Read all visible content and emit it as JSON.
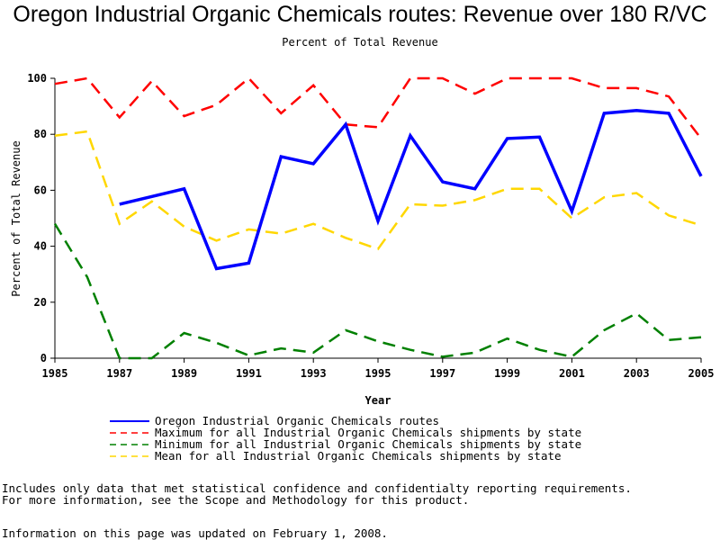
{
  "title": "Oregon Industrial Organic Chemicals routes: Revenue over 180 R/VC",
  "subtitle": "Percent of Total Revenue",
  "footnotes": {
    "line1": "Includes only data that met statistical confidence and confidentialty reporting requirements.",
    "line2": "For more information, see the Scope and Methodology for this product.",
    "updated": "Information on this page was updated on February 1, 2008."
  },
  "chart_data": {
    "type": "line",
    "title": "Oregon Industrial Organic Chemicals routes: Revenue over 180 R/VC",
    "subtitle": "Percent of Total Revenue",
    "xlabel": "Year",
    "ylabel": "Percent of Total Revenue",
    "xlim": [
      1985,
      2005
    ],
    "ylim": [
      0,
      100
    ],
    "xticks": [
      "1985",
      "1987",
      "1989",
      "1991",
      "1993",
      "1995",
      "1997",
      "1999",
      "2001",
      "2003",
      "2005"
    ],
    "yticks": [
      "0",
      "20",
      "40",
      "60",
      "80",
      "100"
    ],
    "grid": false,
    "legend_position": "bottom",
    "series": [
      {
        "name": "Oregon Industrial Organic Chemicals routes",
        "color": "#0000ff",
        "style": "solid",
        "points": [
          [
            1987,
            55
          ],
          [
            1989,
            60.5
          ],
          [
            1990,
            32
          ],
          [
            1991,
            34
          ],
          [
            1992,
            72
          ],
          [
            1993,
            69.5
          ],
          [
            1994,
            83.5
          ],
          [
            1995,
            49
          ],
          [
            1996,
            79.5
          ],
          [
            1997,
            63
          ],
          [
            1998,
            60.5
          ],
          [
            1999,
            78.5
          ],
          [
            2000,
            79
          ],
          [
            2001,
            52.5
          ],
          [
            2002,
            87.5
          ],
          [
            2003,
            88.5
          ],
          [
            2004,
            87.5
          ],
          [
            2005,
            65
          ]
        ]
      },
      {
        "name": "Maximum for all Industrial Organic Chemicals shipments by state",
        "color": "#ff0000",
        "style": "dashed",
        "points": [
          [
            1985,
            98
          ],
          [
            1986,
            100
          ],
          [
            1987,
            86
          ],
          [
            1988,
            99
          ],
          [
            1989,
            86.5
          ],
          [
            1990,
            90.5
          ],
          [
            1991,
            100
          ],
          [
            1992,
            87.5
          ],
          [
            1993,
            97.5
          ],
          [
            1994,
            83.5
          ],
          [
            1995,
            82.5
          ],
          [
            1996,
            100
          ],
          [
            1997,
            100
          ],
          [
            1998,
            94.5
          ],
          [
            1999,
            100
          ],
          [
            2000,
            100
          ],
          [
            2001,
            100
          ],
          [
            2002,
            96.5
          ],
          [
            2003,
            96.5
          ],
          [
            2004,
            93.5
          ],
          [
            2005,
            78.5
          ]
        ]
      },
      {
        "name": "Minimum for all Industrial Organic Chemicals shipments by state",
        "color": "#008000",
        "style": "dashed",
        "points": [
          [
            1985,
            48
          ],
          [
            1986,
            29
          ],
          [
            1987,
            0
          ],
          [
            1988,
            0
          ],
          [
            1989,
            9
          ],
          [
            1990,
            5.5
          ],
          [
            1991,
            1
          ],
          [
            1992,
            3.5
          ],
          [
            1993,
            2
          ],
          [
            1994,
            10
          ],
          [
            1995,
            6
          ],
          [
            1996,
            3
          ],
          [
            1997,
            0.5
          ],
          [
            1998,
            2
          ],
          [
            1999,
            7
          ],
          [
            2000,
            3
          ],
          [
            2001,
            0.5
          ],
          [
            2002,
            10
          ],
          [
            2003,
            16
          ],
          [
            2004,
            6.5
          ],
          [
            2005,
            7.5
          ]
        ]
      },
      {
        "name": "Mean for all Industrial Organic Chemicals shipments by state",
        "color": "#ffd700",
        "style": "dashed",
        "points": [
          [
            1985,
            79.5
          ],
          [
            1986,
            81
          ],
          [
            1987,
            48
          ],
          [
            1988,
            56
          ],
          [
            1989,
            47
          ],
          [
            1990,
            42
          ],
          [
            1991,
            46
          ],
          [
            1992,
            44.5
          ],
          [
            1993,
            48
          ],
          [
            1994,
            43
          ],
          [
            1995,
            39
          ],
          [
            1996,
            55
          ],
          [
            1997,
            54.5
          ],
          [
            1998,
            56.5
          ],
          [
            1999,
            60.5
          ],
          [
            2000,
            60.5
          ],
          [
            2001,
            50
          ],
          [
            2002,
            57.5
          ],
          [
            2003,
            59
          ],
          [
            2004,
            51
          ],
          [
            2005,
            47.5
          ]
        ]
      }
    ]
  }
}
